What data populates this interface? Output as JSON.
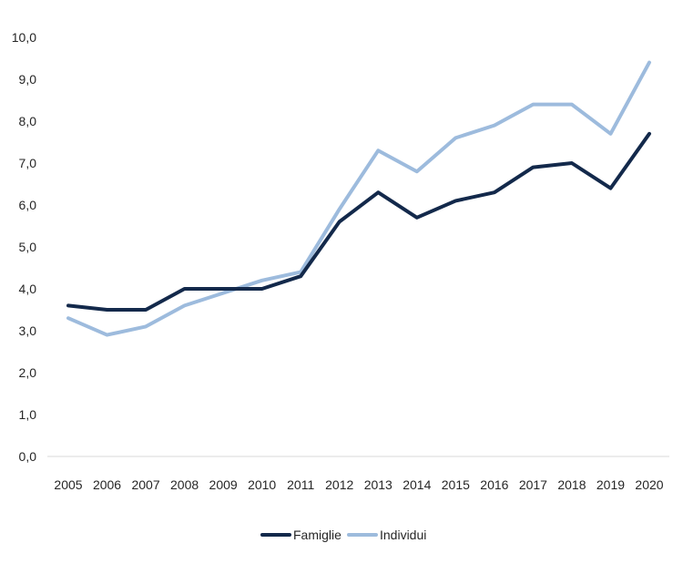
{
  "chart_data": {
    "type": "line",
    "title": "",
    "xlabel": "",
    "ylabel": "",
    "categories": [
      "2005",
      "2006",
      "2007",
      "2008",
      "2009",
      "2010",
      "2011",
      "2012",
      "2013",
      "2014",
      "2015",
      "2016",
      "2017",
      "2018",
      "2019",
      "2020"
    ],
    "ylim": [
      0,
      10
    ],
    "yticks": [
      "0,0",
      "1,0",
      "2,0",
      "3,0",
      "4,0",
      "5,0",
      "6,0",
      "7,0",
      "8,0",
      "9,0",
      "10,0"
    ],
    "grid": false,
    "legend_position": "bottom",
    "series": [
      {
        "name": "Famiglie",
        "color": "#13294b",
        "values": [
          3.6,
          3.5,
          3.5,
          4.0,
          4.0,
          4.0,
          4.3,
          5.6,
          6.3,
          5.7,
          6.1,
          6.3,
          6.9,
          7.0,
          6.4,
          7.7
        ]
      },
      {
        "name": "Individui",
        "color": "#9dbbdd",
        "values": [
          3.3,
          2.9,
          3.1,
          3.6,
          3.9,
          4.2,
          4.4,
          5.9,
          7.3,
          6.8,
          7.6,
          7.9,
          8.4,
          8.4,
          7.7,
          9.4
        ]
      }
    ]
  }
}
